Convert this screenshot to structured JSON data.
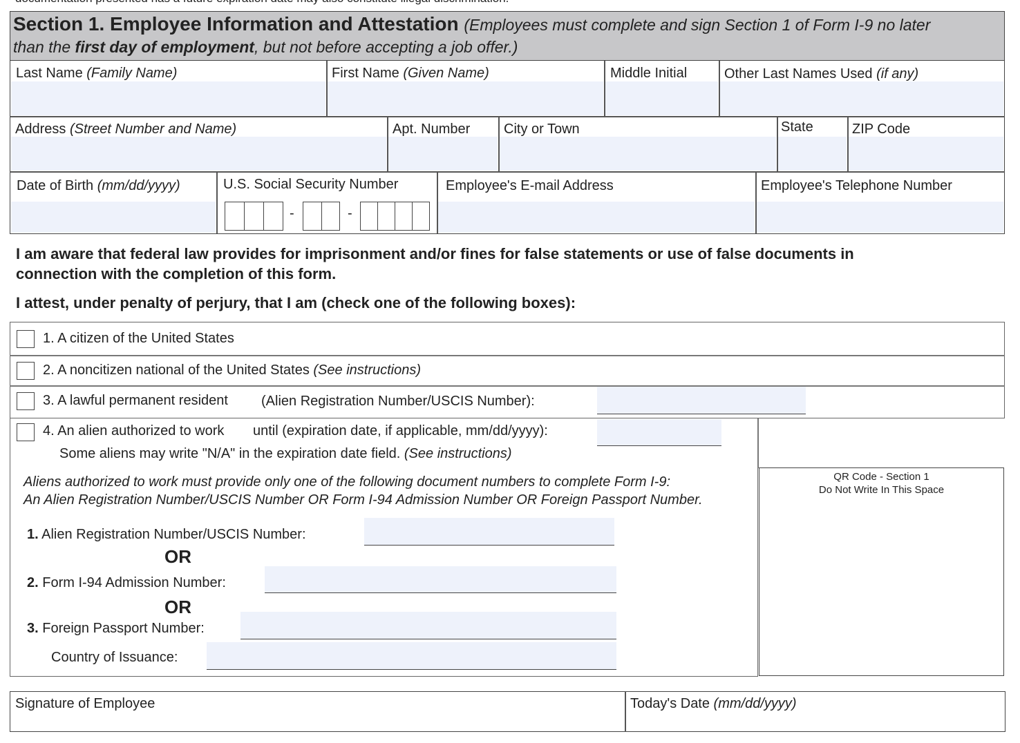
{
  "top_text": "documentation presented has a future expiration date may also constitute illegal discrimination.",
  "section": {
    "title": "Section 1. Employee Information and Attestation",
    "note_1": "(Employees must complete and sign Section 1 of Form I-9 no later",
    "note_2a": "than the ",
    "note_2b": "first day of employment",
    "note_2c": ", but not before accepting a job offer.)"
  },
  "row1": {
    "last": "Last Name ",
    "last_i": "(Family Name)",
    "first": "First Name ",
    "first_i": "(Given Name)",
    "middle": "Middle Initial",
    "other": "Other Last Names Used ",
    "other_i": "(if any)"
  },
  "row2": {
    "address": "Address ",
    "address_i": "(Street Number and Name)",
    "apt": "Apt. Number",
    "city": "City or Town",
    "state": "State",
    "zip": "ZIP Code"
  },
  "row3": {
    "dob": "Date of Birth ",
    "dob_i": "(mm/dd/yyyy)",
    "ssn": "U.S. Social Security Number",
    "dash": "-",
    "email": "Employee's E-mail Address",
    "phone": "Employee's Telephone Number"
  },
  "aware_1": "I am aware that federal law provides for imprisonment and/or fines for false statements or use of false documents in",
  "aware_2": "connection with the completion of this form.",
  "attest": "I attest, under penalty of perjury, that I am (check one of the following boxes):",
  "options": {
    "o1": "1. A citizen of the United States",
    "o2": "2. A noncitizen national of the United States ",
    "o2_i": "(See instructions)",
    "o3": "3. A lawful permanent resident",
    "o3_b": "(Alien Registration Number/USCIS Number):",
    "o4": "4. An alien authorized to work",
    "o4_b": "until (expiration date, if applicable, mm/dd/yyyy):",
    "o4_c": "Some aliens may write \"N/A\" in the expiration date field. ",
    "o4_c_i": "(See instructions)"
  },
  "aliens_1": "Aliens authorized to work must provide only one of the following document numbers to complete Form I-9:",
  "aliens_2": "An Alien Registration Number/USCIS Number OR Form I-94 Admission Number OR Foreign Passport Number.",
  "docs": {
    "d1n": "1.",
    "d1": " Alien Registration Number/USCIS Number:",
    "or": "OR",
    "d2n": "2.",
    "d2": " Form I-94 Admission Number:",
    "d3n": "3.",
    "d3": " Foreign Passport Number:",
    "country": "Country of Issuance:"
  },
  "qr": {
    "line1": "QR Code - Section 1",
    "line2": "Do Not Write In This Space"
  },
  "sig": {
    "signature": "Signature of Employee",
    "date": "Today's Date ",
    "date_i": "(mm/dd/yyyy)"
  }
}
